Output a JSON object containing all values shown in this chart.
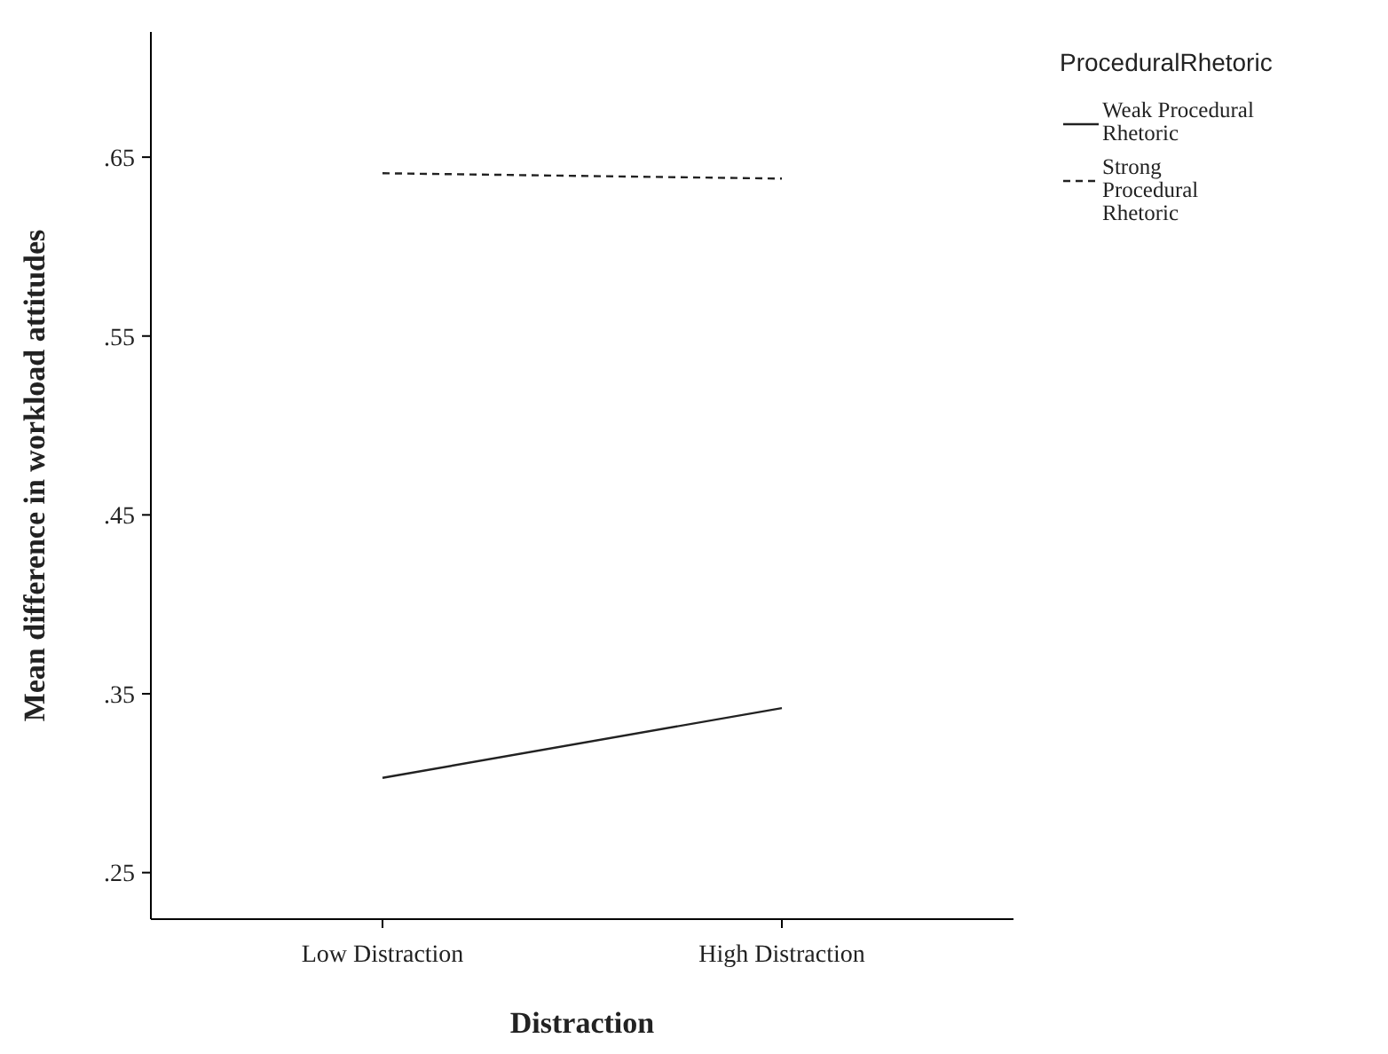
{
  "chart_data": {
    "type": "line",
    "xlabel": "Distraction",
    "ylabel": "Mean difference in workload attitudes",
    "legend_title": "ProceduralRhetoric",
    "legend": "right",
    "categories": [
      "Low Distraction",
      "High Distraction"
    ],
    "series": [
      {
        "name": "Weak Procedural Rhetoric",
        "color": "#222222",
        "line_style": "solid",
        "values": [
          0.303,
          0.342
        ]
      },
      {
        "name": "Strong Procedural Rhetoric",
        "color": "#222222",
        "line_style": "dashed",
        "values": [
          0.641,
          0.638
        ]
      }
    ],
    "ylim": [
      0.224,
      0.72
    ],
    "yticks": [
      {
        "value": 0.25,
        "label": ".25"
      },
      {
        "value": 0.35,
        "label": ".35"
      },
      {
        "value": 0.45,
        "label": ".45"
      },
      {
        "value": 0.55,
        "label": ".55"
      },
      {
        "value": 0.65,
        "label": ".65"
      }
    ],
    "grid": false,
    "marker": "none"
  }
}
